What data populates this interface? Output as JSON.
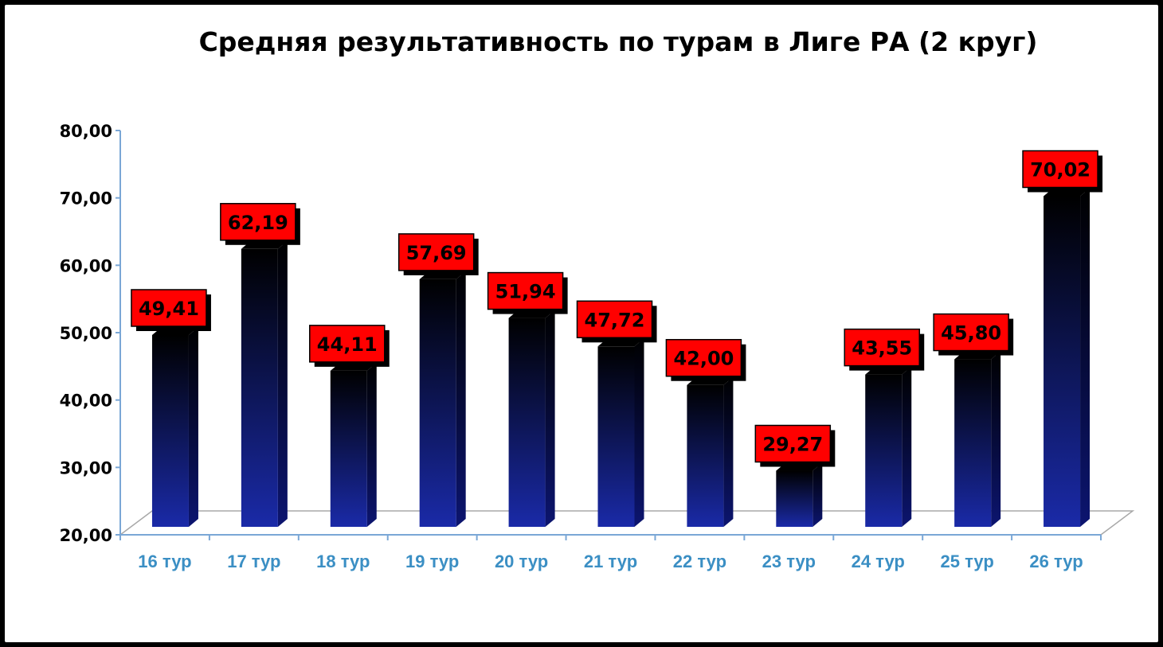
{
  "chart_data": {
    "type": "bar",
    "title": "Средняя результативность по турам в Лиге РА (2 круг)",
    "xlabel": "",
    "ylabel": "",
    "categories": [
      "16 тур",
      "17 тур",
      "18 тур",
      "19 тур",
      "20 тур",
      "21 тур",
      "22 тур",
      "23 тур",
      "24 тур",
      "25 тур",
      "26 тур"
    ],
    "values": [
      49.41,
      62.19,
      44.11,
      57.69,
      51.94,
      47.72,
      42.0,
      29.27,
      43.55,
      45.8,
      70.02
    ],
    "data_labels": [
      "49,41",
      "62,19",
      "44,11",
      "57,69",
      "51,94",
      "47,72",
      "42,00",
      "29,27",
      "43,55",
      "45,80",
      "70,02"
    ],
    "ylim": [
      20,
      80
    ],
    "yticks": [
      "20,00",
      "30,00",
      "40,00",
      "50,00",
      "60,00",
      "70,00",
      "80,00"
    ],
    "grid": false,
    "legend": "none",
    "colors": {
      "bar_top": "#000000",
      "bar_bottom": "#1a2aa8",
      "label_fill": "#ff0000",
      "axis": "#7aa7d6",
      "xtick_text": "#3b8fc4"
    }
  }
}
